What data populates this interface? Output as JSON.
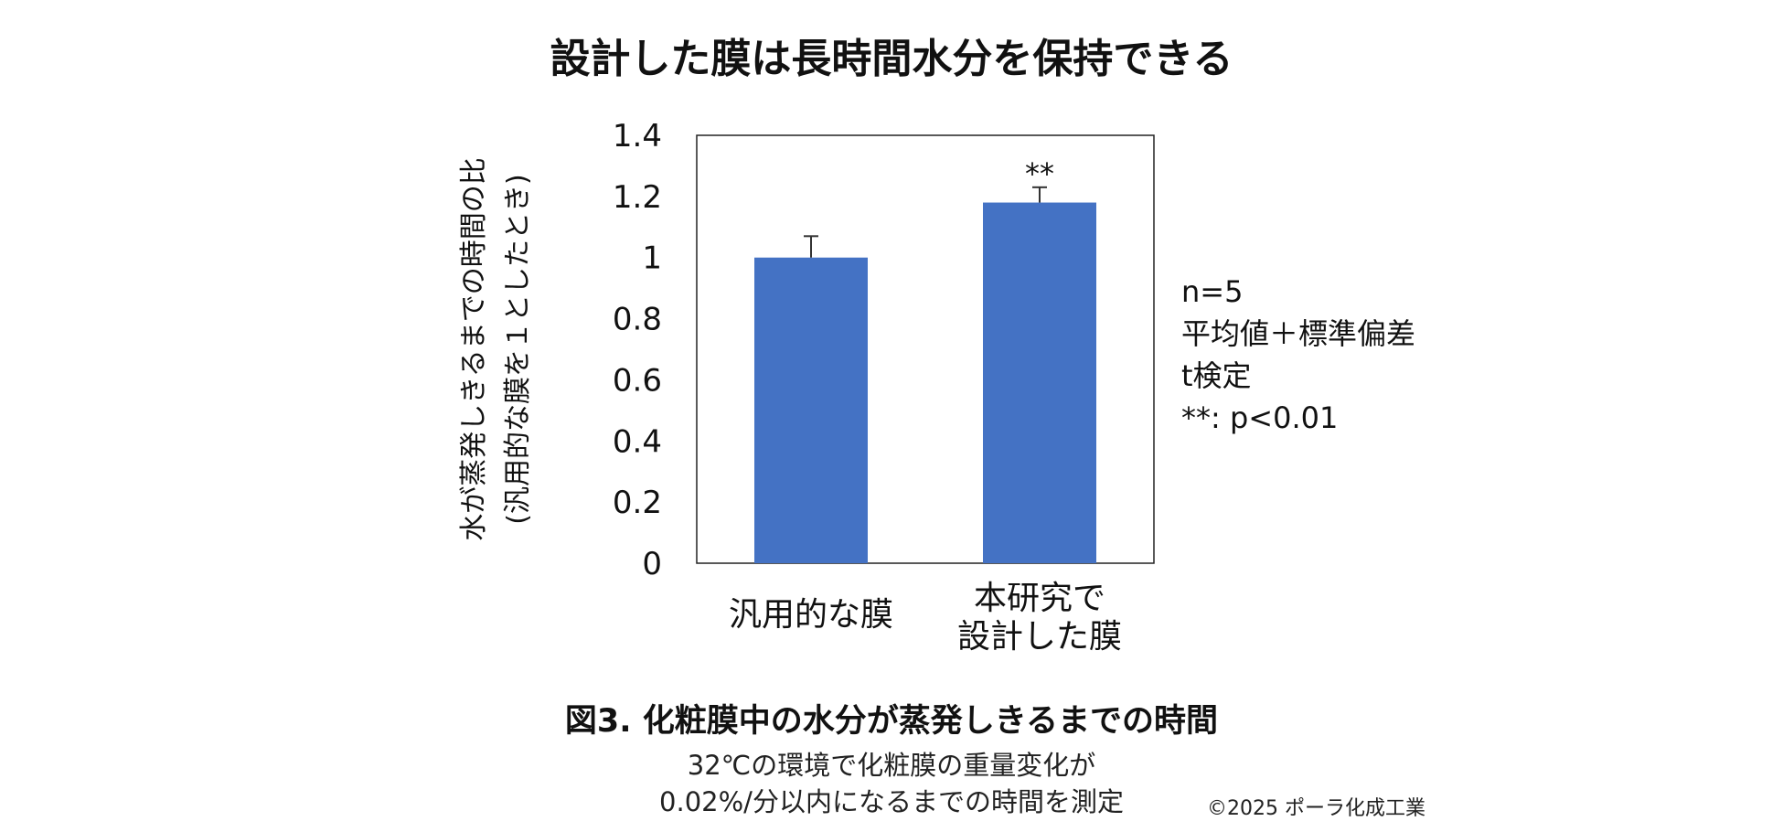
{
  "title": "設計した膜は長時間水分を保持できる",
  "chart_data": {
    "type": "bar",
    "categories": [
      [
        "汎用的な膜"
      ],
      [
        "本研究で",
        "設計した膜"
      ]
    ],
    "values": [
      1.0,
      1.18
    ],
    "error_plus": [
      0.07,
      0.05
    ],
    "significance": [
      "",
      "**"
    ],
    "ylabel_lines": [
      "水が蒸発しきるまでの時間の比",
      "(汎用的な膜を１としたとき)"
    ],
    "ylim": [
      0,
      1.4
    ],
    "yticks": [
      "0",
      "0.2",
      "0.4",
      "0.6",
      "0.8",
      "1",
      "1.2",
      "1.4"
    ],
    "bar_color": "#4472C4",
    "grid": false,
    "legend": "none"
  },
  "notes": [
    "n=5",
    "平均値＋標準偏差",
    "t検定",
    "**: p<0.01"
  ],
  "caption": "図3.  化粧膜中の水分が蒸発しきるまでの時間",
  "subcaption": [
    "32℃の環境で化粧膜の重量変化が",
    "0.02%/分以内になるまでの時間を測定"
  ],
  "copyright": "©2025 ポーラ化成工業"
}
